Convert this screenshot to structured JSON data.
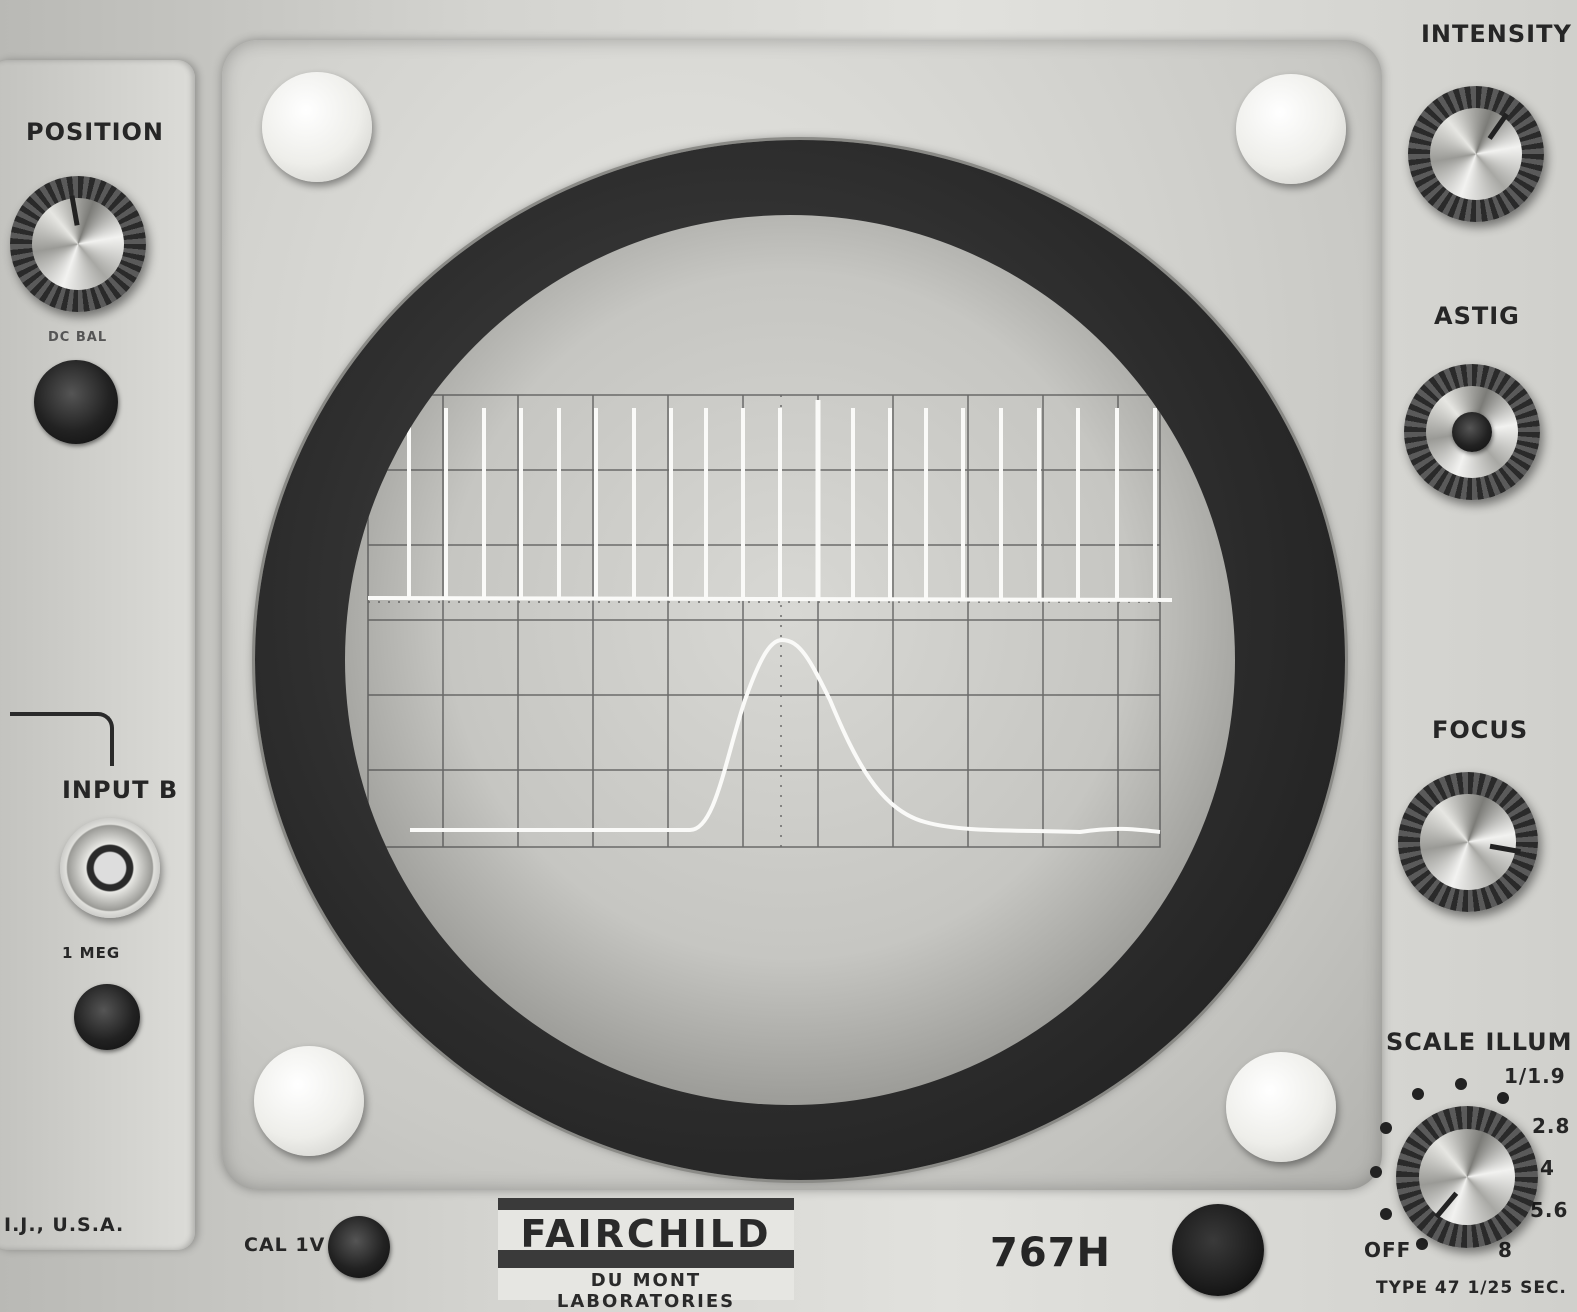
{
  "labels": {
    "intensity": "INTENSITY",
    "position": "POSITION",
    "dc_bal": "DC BAL",
    "astig": "ASTIG",
    "focus": "FOCUS",
    "input_b": "INPUT B",
    "one_meg": "1 MEG",
    "scale_illum": "SCALE ILLUM",
    "f_1_9": "1/1.9",
    "f_2_8": "2.8",
    "f_4": "4",
    "f_5_6": "5.6",
    "f_8": "8",
    "off": "OFF",
    "cal_1v": "CAL 1V",
    "model": "767H",
    "location": "I.J., U.S.A.",
    "camera_type": "TYPE 47 1/25 SEC."
  },
  "brand": {
    "name": "FAIRCHILD",
    "subtitle": "DU MONT LABORATORIES"
  },
  "colors": {
    "panel": "#d3d3cf",
    "screen": "#cfcfcb",
    "trace": "#fafaf8",
    "graticule": "#4a4a4a",
    "bezel_ring": "#2b2b2b"
  },
  "icons": [
    "knob-icon",
    "bnc-connector-icon",
    "jack-icon",
    "screw-icon"
  ]
}
